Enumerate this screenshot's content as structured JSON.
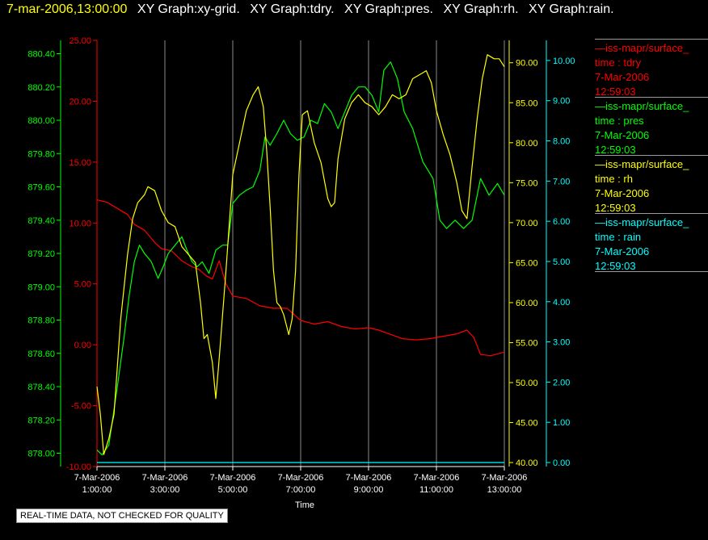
{
  "header": {
    "timestamp": "7-mar-2006,13:00:00",
    "graph_titles": [
      "XY Graph:xy-grid.",
      "XY Graph:tdry.",
      "XY Graph:pres.",
      "XY Graph:rh.",
      "XY Graph:rain."
    ]
  },
  "legend": [
    {
      "source": "iss-mapr/surface_",
      "variable": "time : tdry",
      "date": "7-Mar-2006",
      "time": "12:59:03",
      "color": "#ff0000"
    },
    {
      "source": "iss-mapr/surface_",
      "variable": "time : pres",
      "date": "7-Mar-2006",
      "time": "12:59:03",
      "color": "#00ff00"
    },
    {
      "source": "iss-mapr/surface_",
      "variable": "time : rh",
      "date": "7-Mar-2006",
      "time": "12:59:03",
      "color": "#ffff00"
    },
    {
      "source": "iss-mapr/surface_",
      "variable": "time : rain",
      "date": "7-Mar-2006",
      "time": "12:59:03",
      "color": "#00ffff"
    }
  ],
  "disclaimer": "REAL-TIME DATA, NOT CHECKED FOR QUALITY",
  "chart_data": {
    "type": "line",
    "xlabel": "Time",
    "x_ticks": [
      {
        "date": "7-Mar-2006",
        "time": "1:00:00",
        "hour": 1
      },
      {
        "date": "7-Mar-2006",
        "time": "3:00:00",
        "hour": 3
      },
      {
        "date": "7-Mar-2006",
        "time": "5:00:00",
        "hour": 5
      },
      {
        "date": "7-Mar-2006",
        "time": "7:00:00",
        "hour": 7
      },
      {
        "date": "7-Mar-2006",
        "time": "9:00:00",
        "hour": 9
      },
      {
        "date": "7-Mar-2006",
        "time": "11:00:00",
        "hour": 11
      },
      {
        "date": "7-Mar-2006",
        "time": "13:00:00",
        "hour": 13
      }
    ],
    "xlim": [
      1,
      13
    ],
    "grid": "vertical",
    "axes": {
      "pres": {
        "color": "#00ff00",
        "ylim": [
          877.92,
          880.48
        ],
        "ticks": [
          "878.00",
          "878.20",
          "878.40",
          "878.60",
          "878.80",
          "879.00",
          "879.20",
          "879.40",
          "879.60",
          "879.80",
          "880.00",
          "880.20",
          "880.40"
        ]
      },
      "tdry": {
        "color": "#ff0000",
        "ylim": [
          -10,
          25
        ],
        "ticks": [
          "-10.00",
          "-5.00",
          "0.00",
          "5.00",
          "10.00",
          "15.00",
          "20.00",
          "25.00"
        ]
      },
      "rh": {
        "color": "#ffff00",
        "ylim": [
          39.5,
          92.8
        ],
        "ticks": [
          "40.00",
          "45.00",
          "50.00",
          "55.00",
          "60.00",
          "65.00",
          "70.00",
          "75.00",
          "80.00",
          "85.00",
          "90.00"
        ]
      },
      "rain": {
        "color": "#00ffff",
        "ylim": [
          -0.1,
          10.5
        ],
        "ticks": [
          "0.00",
          "1.00",
          "2.00",
          "3.00",
          "4.00",
          "5.00",
          "6.00",
          "7.00",
          "8.00",
          "9.00",
          "10.00"
        ]
      }
    },
    "series": [
      {
        "name": "time : tdry",
        "axis": "tdry",
        "color": "#ff0000",
        "points": [
          [
            1.0,
            11.9
          ],
          [
            1.3,
            11.7
          ],
          [
            1.6,
            11.2
          ],
          [
            1.9,
            10.7
          ],
          [
            2.1,
            9.9
          ],
          [
            2.4,
            9.4
          ],
          [
            2.7,
            8.4
          ],
          [
            2.9,
            7.9
          ],
          [
            3.2,
            7.7
          ],
          [
            3.5,
            6.9
          ],
          [
            3.8,
            6.4
          ],
          [
            4.0,
            6.2
          ],
          [
            4.2,
            5.7
          ],
          [
            4.4,
            5.4
          ],
          [
            4.6,
            6.9
          ],
          [
            4.8,
            5.0
          ],
          [
            5.0,
            4.0
          ],
          [
            5.4,
            3.8
          ],
          [
            5.8,
            3.2
          ],
          [
            6.2,
            3.0
          ],
          [
            6.6,
            3.0
          ],
          [
            7.0,
            2.0
          ],
          [
            7.4,
            1.7
          ],
          [
            7.8,
            1.9
          ],
          [
            8.2,
            1.5
          ],
          [
            8.6,
            1.3
          ],
          [
            9.0,
            1.4
          ],
          [
            9.3,
            1.2
          ],
          [
            9.6,
            0.9
          ],
          [
            10.0,
            0.5
          ],
          [
            10.4,
            0.4
          ],
          [
            10.8,
            0.5
          ],
          [
            11.2,
            0.7
          ],
          [
            11.6,
            0.9
          ],
          [
            11.9,
            1.2
          ],
          [
            12.1,
            0.6
          ],
          [
            12.3,
            -0.8
          ],
          [
            12.6,
            -0.9
          ],
          [
            13.0,
            -0.6
          ]
        ]
      },
      {
        "name": "time : pres",
        "axis": "pres",
        "color": "#00ff00",
        "points": [
          [
            1.0,
            878.02
          ],
          [
            1.15,
            877.99
          ],
          [
            1.35,
            878.05
          ],
          [
            1.6,
            878.4
          ],
          [
            1.8,
            878.7
          ],
          [
            1.95,
            878.95
          ],
          [
            2.1,
            879.15
          ],
          [
            2.25,
            879.25
          ],
          [
            2.4,
            879.2
          ],
          [
            2.6,
            879.15
          ],
          [
            2.8,
            879.05
          ],
          [
            2.95,
            879.12
          ],
          [
            3.1,
            879.2
          ],
          [
            3.3,
            879.25
          ],
          [
            3.5,
            879.3
          ],
          [
            3.65,
            879.22
          ],
          [
            3.8,
            879.15
          ],
          [
            3.95,
            879.12
          ],
          [
            4.1,
            879.15
          ],
          [
            4.3,
            879.08
          ],
          [
            4.5,
            879.22
          ],
          [
            4.7,
            879.25
          ],
          [
            4.85,
            879.25
          ],
          [
            5.0,
            879.5
          ],
          [
            5.2,
            879.55
          ],
          [
            5.4,
            879.58
          ],
          [
            5.6,
            879.6
          ],
          [
            5.8,
            879.7
          ],
          [
            5.95,
            879.9
          ],
          [
            6.1,
            879.85
          ],
          [
            6.3,
            879.92
          ],
          [
            6.5,
            880.0
          ],
          [
            6.7,
            879.92
          ],
          [
            6.9,
            879.88
          ],
          [
            7.1,
            879.9
          ],
          [
            7.3,
            880.0
          ],
          [
            7.5,
            879.98
          ],
          [
            7.7,
            880.1
          ],
          [
            7.9,
            880.05
          ],
          [
            8.1,
            879.95
          ],
          [
            8.3,
            880.05
          ],
          [
            8.5,
            880.15
          ],
          [
            8.7,
            880.2
          ],
          [
            8.9,
            880.2
          ],
          [
            9.1,
            880.15
          ],
          [
            9.3,
            880.05
          ],
          [
            9.45,
            880.3
          ],
          [
            9.65,
            880.35
          ],
          [
            9.85,
            880.25
          ],
          [
            10.05,
            880.05
          ],
          [
            10.3,
            879.95
          ],
          [
            10.6,
            879.75
          ],
          [
            10.9,
            879.65
          ],
          [
            11.1,
            879.4
          ],
          [
            11.3,
            879.35
          ],
          [
            11.55,
            879.4
          ],
          [
            11.8,
            879.35
          ],
          [
            12.05,
            879.4
          ],
          [
            12.3,
            879.65
          ],
          [
            12.55,
            879.55
          ],
          [
            12.8,
            879.62
          ],
          [
            13.0,
            879.55
          ]
        ]
      },
      {
        "name": "time : rh",
        "axis": "rh",
        "color": "#ffff00",
        "points": [
          [
            1.0,
            49.5
          ],
          [
            1.1,
            46.0
          ],
          [
            1.2,
            41.0
          ],
          [
            1.35,
            43.0
          ],
          [
            1.5,
            46.0
          ],
          [
            1.7,
            58.0
          ],
          [
            1.9,
            66.0
          ],
          [
            2.05,
            70.5
          ],
          [
            2.2,
            72.5
          ],
          [
            2.4,
            73.5
          ],
          [
            2.5,
            74.5
          ],
          [
            2.7,
            74.0
          ],
          [
            2.9,
            71.5
          ],
          [
            3.1,
            70.0
          ],
          [
            3.3,
            69.5
          ],
          [
            3.5,
            67.0
          ],
          [
            3.7,
            66.0
          ],
          [
            3.9,
            65.0
          ],
          [
            4.05,
            60.0
          ],
          [
            4.15,
            55.5
          ],
          [
            4.25,
            56.0
          ],
          [
            4.4,
            52.5
          ],
          [
            4.5,
            48.0
          ],
          [
            4.6,
            53.0
          ],
          [
            4.8,
            64.0
          ],
          [
            5.0,
            76.0
          ],
          [
            5.2,
            80.0
          ],
          [
            5.4,
            84.0
          ],
          [
            5.6,
            86.0
          ],
          [
            5.75,
            87.0
          ],
          [
            5.9,
            84.5
          ],
          [
            6.0,
            79.0
          ],
          [
            6.1,
            72.0
          ],
          [
            6.2,
            64.0
          ],
          [
            6.3,
            60.0
          ],
          [
            6.4,
            59.5
          ],
          [
            6.5,
            58.5
          ],
          [
            6.65,
            56.0
          ],
          [
            6.75,
            58.0
          ],
          [
            6.85,
            64.0
          ],
          [
            6.95,
            76.0
          ],
          [
            7.05,
            83.5
          ],
          [
            7.2,
            84.0
          ],
          [
            7.4,
            80.0
          ],
          [
            7.6,
            77.5
          ],
          [
            7.8,
            73.0
          ],
          [
            7.9,
            72.0
          ],
          [
            8.0,
            72.5
          ],
          [
            8.1,
            78.0
          ],
          [
            8.3,
            83.0
          ],
          [
            8.5,
            85.0
          ],
          [
            8.7,
            86.0
          ],
          [
            8.9,
            85.0
          ],
          [
            9.1,
            84.5
          ],
          [
            9.3,
            83.5
          ],
          [
            9.5,
            84.5
          ],
          [
            9.7,
            86.0
          ],
          [
            9.9,
            85.5
          ],
          [
            10.1,
            86.0
          ],
          [
            10.3,
            88.0
          ],
          [
            10.5,
            88.5
          ],
          [
            10.7,
            89.0
          ],
          [
            10.85,
            87.5
          ],
          [
            11.0,
            84.0
          ],
          [
            11.2,
            81.0
          ],
          [
            11.4,
            78.5
          ],
          [
            11.6,
            75.0
          ],
          [
            11.75,
            71.5
          ],
          [
            11.9,
            70.5
          ],
          [
            12.05,
            77.0
          ],
          [
            12.2,
            83.0
          ],
          [
            12.35,
            88.0
          ],
          [
            12.5,
            91.0
          ],
          [
            12.7,
            90.5
          ],
          [
            12.85,
            90.5
          ],
          [
            13.0,
            89.5
          ]
        ]
      },
      {
        "name": "time : rain",
        "axis": "rain",
        "color": "#00ffff",
        "points": [
          [
            1.0,
            0.0
          ],
          [
            13.0,
            0.0
          ]
        ]
      }
    ]
  }
}
